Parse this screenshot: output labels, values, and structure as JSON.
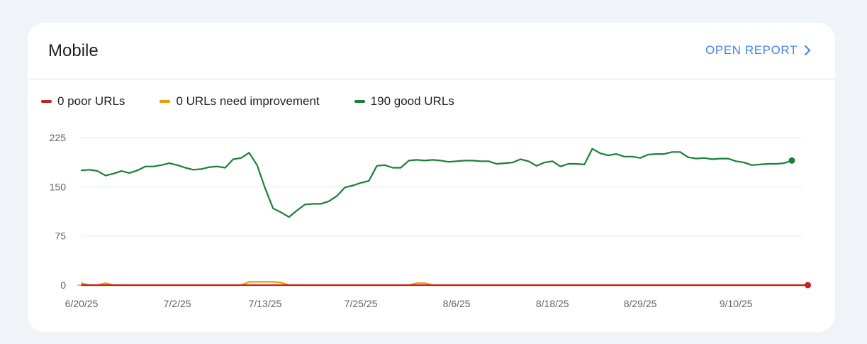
{
  "card": {
    "title": "Mobile",
    "open_report_label": "OPEN REPORT",
    "icon": "chevron-right-icon"
  },
  "colors": {
    "poor": "#c5221f",
    "needs_improvement": "#f29900",
    "good": "#188038",
    "accent": "#4285f4"
  },
  "legend": [
    {
      "label": "0 poor URLs",
      "color": "#c5221f"
    },
    {
      "label": "0 URLs need improvement",
      "color": "#f29900"
    },
    {
      "label": "190 good URLs",
      "color": "#188038"
    }
  ],
  "chart_data": {
    "type": "line",
    "x_tick_labels": [
      "6/20/25",
      "7/2/25",
      "7/13/25",
      "7/25/25",
      "8/6/25",
      "8/18/25",
      "8/29/25",
      "9/10/25"
    ],
    "x_tick_indices": [
      0,
      12,
      23,
      35,
      47,
      59,
      70,
      82
    ],
    "y_ticks": [
      0,
      75,
      150,
      225
    ],
    "ylim": [
      0,
      225
    ],
    "grid": true,
    "legend_position": "top-left",
    "series": [
      {
        "name": "0 poor URLs",
        "color": "#c5221f",
        "values": [
          0,
          0,
          0,
          0,
          0,
          0,
          0,
          0,
          0,
          0,
          0,
          0,
          0,
          0,
          0,
          0,
          0,
          0,
          0,
          0,
          0,
          0,
          0,
          0,
          0,
          0,
          0,
          0,
          0,
          0,
          0,
          0,
          0,
          0,
          0,
          0,
          0,
          0,
          0,
          0,
          0,
          0,
          0,
          0,
          0,
          0,
          0,
          0,
          0,
          0,
          0,
          0,
          0,
          0,
          0,
          0,
          0,
          0,
          0,
          0,
          0,
          0,
          0,
          0,
          0,
          0,
          0,
          0,
          0,
          0,
          0,
          0,
          0,
          0,
          0,
          0,
          0,
          0,
          0,
          0,
          0,
          0,
          0,
          0,
          0,
          0,
          0,
          0,
          0,
          0,
          0,
          0
        ],
        "end_marker": true
      },
      {
        "name": "0 URLs need improvement",
        "color": "#f29900",
        "values": [
          3,
          0,
          0,
          3,
          0,
          0,
          0,
          0,
          0,
          0,
          0,
          0,
          0,
          0,
          0,
          0,
          0,
          0,
          0,
          0,
          0,
          5,
          5,
          5,
          5,
          4,
          0,
          0,
          0,
          0,
          0,
          0,
          0,
          0,
          0,
          0,
          0,
          0,
          0,
          0,
          0,
          0,
          3,
          3,
          0,
          0,
          0,
          0,
          0,
          0,
          0,
          0,
          0,
          0,
          0,
          0,
          0,
          0,
          0,
          0,
          0,
          0,
          0,
          0,
          0,
          0,
          0,
          0,
          0,
          0,
          0,
          0,
          0,
          0,
          0,
          0,
          0,
          0,
          0,
          0,
          0,
          0,
          0,
          0,
          0,
          0,
          0,
          0,
          0,
          0,
          0,
          0
        ],
        "end_marker": false
      },
      {
        "name": "190 good URLs",
        "color": "#188038",
        "values": [
          175,
          176,
          174,
          167,
          170,
          174,
          171,
          175,
          181,
          181,
          183,
          186,
          183,
          179,
          176,
          177,
          180,
          181,
          179,
          192,
          194,
          202,
          183,
          148,
          117,
          111,
          104,
          114,
          123,
          124,
          124,
          128,
          136,
          149,
          152,
          156,
          159,
          182,
          183,
          179,
          179,
          190,
          191,
          190,
          191,
          190,
          188,
          189,
          190,
          190,
          189,
          189,
          185,
          186,
          187,
          192,
          189,
          182,
          187,
          189,
          181,
          185,
          185,
          184,
          208,
          201,
          198,
          200,
          196,
          196,
          194,
          199,
          200,
          200,
          203,
          203,
          195,
          193,
          194,
          192,
          193,
          193,
          189,
          187,
          183,
          184,
          185,
          185,
          186,
          190
        ],
        "end_marker": true
      }
    ]
  }
}
